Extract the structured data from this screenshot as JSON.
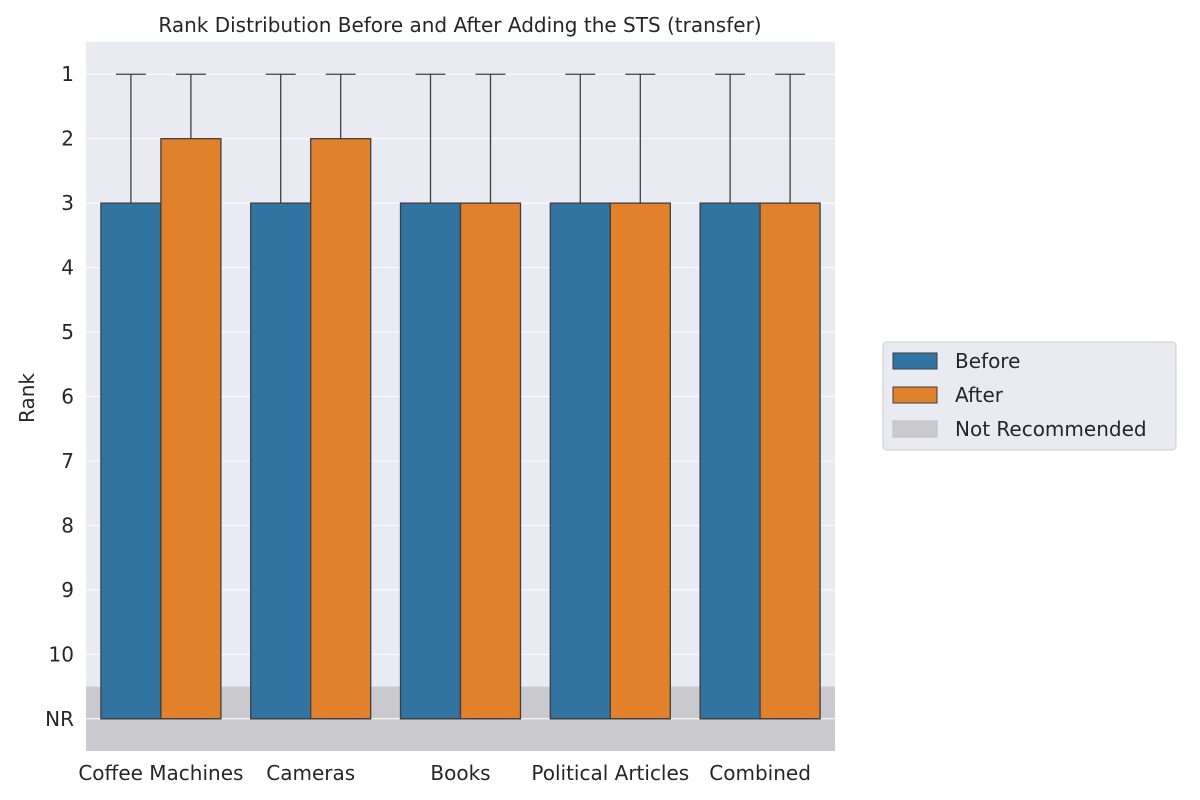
{
  "chart_data": {
    "type": "box",
    "title": "Rank Distribution Before and After Adding the STS (transfer)",
    "xlabel": "",
    "ylabel": "Rank",
    "categories": [
      "Coffee Machines",
      "Cameras",
      "Books",
      "Political Articles",
      "Combined"
    ],
    "yticks": [
      "1",
      "2",
      "3",
      "4",
      "5",
      "6",
      "7",
      "8",
      "9",
      "10",
      "NR"
    ],
    "ylim": [
      0.5,
      11.5
    ],
    "y_inverted": true,
    "nr_rank_value": 11,
    "grid": true,
    "legend_position": "right",
    "legend": [
      "Before",
      "After",
      "Not Recommended"
    ],
    "not_recommended_band": [
      10.5,
      11.5
    ],
    "colors": {
      "before": "#3274a1",
      "after": "#e1812c",
      "nr_band": "#cacace",
      "plot_bg": "#eaeaf2",
      "edge": "#3f3f3f"
    },
    "series": [
      {
        "name": "Before",
        "boxes": [
          {
            "whisker_low": 1,
            "q1": 3,
            "median": 11,
            "q3": 11,
            "whisker_high": 11
          },
          {
            "whisker_low": 1,
            "q1": 3,
            "median": 11,
            "q3": 11,
            "whisker_high": 11
          },
          {
            "whisker_low": 1,
            "q1": 3,
            "median": 11,
            "q3": 11,
            "whisker_high": 11
          },
          {
            "whisker_low": 1,
            "q1": 3,
            "median": 11,
            "q3": 11,
            "whisker_high": 11
          },
          {
            "whisker_low": 1,
            "q1": 3,
            "median": 11,
            "q3": 11,
            "whisker_high": 11
          }
        ]
      },
      {
        "name": "After",
        "boxes": [
          {
            "whisker_low": 1,
            "q1": 2,
            "median": 11,
            "q3": 11,
            "whisker_high": 11
          },
          {
            "whisker_low": 1,
            "q1": 2,
            "median": 11,
            "q3": 11,
            "whisker_high": 11
          },
          {
            "whisker_low": 1,
            "q1": 3,
            "median": 11,
            "q3": 11,
            "whisker_high": 11
          },
          {
            "whisker_low": 1,
            "q1": 3,
            "median": 11,
            "q3": 11,
            "whisker_high": 11
          },
          {
            "whisker_low": 1,
            "q1": 3,
            "median": 11,
            "q3": 11,
            "whisker_high": 11
          }
        ]
      }
    ]
  }
}
